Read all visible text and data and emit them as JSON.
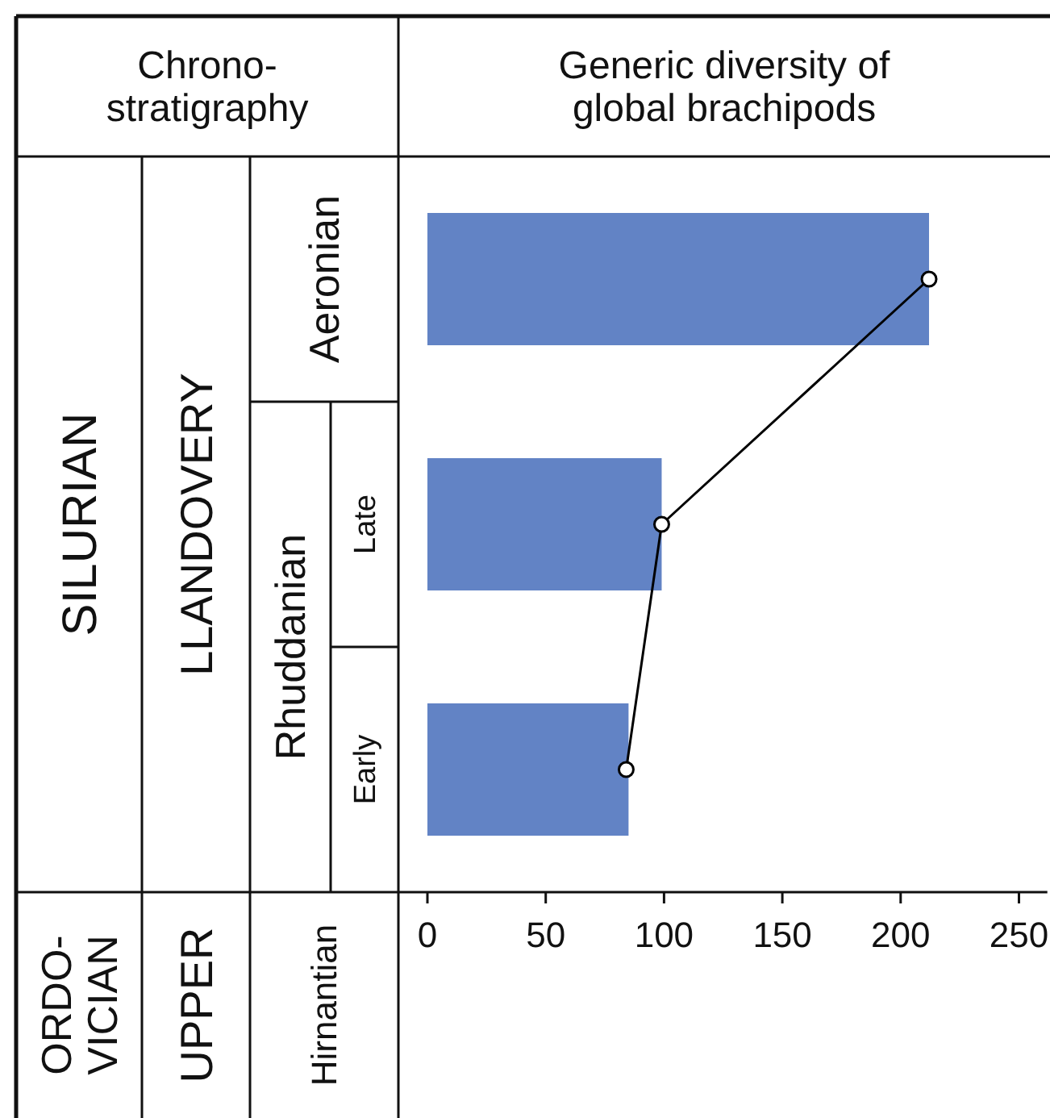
{
  "chart_data": {
    "type": "bar",
    "orientation": "horizontal",
    "title": "Generic diversity of\nglobal brachipods",
    "categories": [
      "Aeronian",
      "Late",
      "Early"
    ],
    "series": [
      {
        "color": "#6283c5",
        "values": [
          212,
          99,
          85
        ]
      },
      {
        "type": "line",
        "color": "#000000",
        "values": [
          212,
          99,
          84
        ],
        "marker": "circle",
        "line_style": "solid"
      }
    ],
    "xlim": [
      0,
      262
    ],
    "xticks": [
      0,
      50,
      100,
      150,
      200,
      250
    ],
    "grid": false,
    "annotations": [
      "Chrono-\nstratigraphy",
      "SILURIAN",
      "LLANDOVERY",
      "Rhuddanian",
      "ORDO-\nVICIAN",
      "UPPER",
      "Hirnantian"
    ]
  }
}
